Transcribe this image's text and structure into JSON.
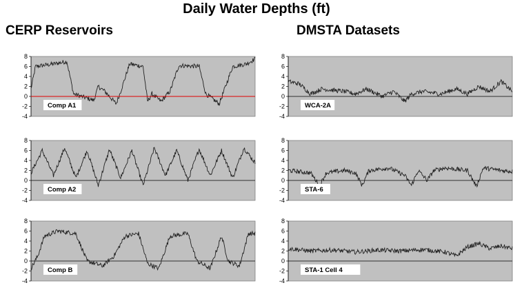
{
  "title": "Daily Water Depths (ft)",
  "column_titles": [
    "CERP Reservoirs",
    "DMSTA Datasets"
  ],
  "chart_data": [
    {
      "type": "line",
      "label": "Comp A1",
      "ylim": [
        -4,
        8
      ],
      "yticks": [
        -4,
        -2,
        0,
        2,
        4,
        6,
        8
      ],
      "reference_line": {
        "y": 0,
        "color": "#e00000"
      },
      "segments": [
        [
          0,
          1.5
        ],
        [
          0.02,
          6
        ],
        [
          0.1,
          6.5
        ],
        [
          0.16,
          7
        ],
        [
          0.19,
          0.5
        ],
        [
          0.28,
          -0.8
        ],
        [
          0.3,
          2
        ],
        [
          0.33,
          1
        ],
        [
          0.38,
          -1.5
        ],
        [
          0.4,
          1
        ],
        [
          0.44,
          6.5
        ],
        [
          0.5,
          6
        ],
        [
          0.52,
          -1
        ],
        [
          0.54,
          0.5
        ],
        [
          0.58,
          -1
        ],
        [
          0.62,
          1
        ],
        [
          0.66,
          6.2
        ],
        [
          0.75,
          6
        ],
        [
          0.78,
          0.5
        ],
        [
          0.84,
          -1.5
        ],
        [
          0.86,
          1
        ],
        [
          0.9,
          6
        ],
        [
          0.96,
          6.5
        ],
        [
          1,
          7.5
        ]
      ]
    },
    {
      "type": "line",
      "label": "Comp A2",
      "ylim": [
        -4,
        8
      ],
      "yticks": [
        -4,
        -2,
        0,
        2,
        4,
        6,
        8
      ],
      "segments": [
        [
          0,
          1.5
        ],
        [
          0.05,
          6
        ],
        [
          0.1,
          1
        ],
        [
          0.15,
          6.5
        ],
        [
          0.2,
          0.5
        ],
        [
          0.25,
          6
        ],
        [
          0.3,
          -1
        ],
        [
          0.35,
          6.2
        ],
        [
          0.4,
          0.5
        ],
        [
          0.45,
          6
        ],
        [
          0.5,
          -1
        ],
        [
          0.55,
          6.5
        ],
        [
          0.6,
          1
        ],
        [
          0.65,
          6
        ],
        [
          0.7,
          0
        ],
        [
          0.75,
          6.3
        ],
        [
          0.8,
          1
        ],
        [
          0.85,
          6
        ],
        [
          0.9,
          0.5
        ],
        [
          0.95,
          6.5
        ],
        [
          1,
          3.5
        ]
      ]
    },
    {
      "type": "line",
      "label": "Comp B",
      "ylim": [
        -4,
        8
      ],
      "yticks": [
        -4,
        -2,
        0,
        2,
        4,
        6,
        8
      ],
      "segments": [
        [
          0,
          -1.5
        ],
        [
          0.03,
          1
        ],
        [
          0.06,
          5
        ],
        [
          0.12,
          6
        ],
        [
          0.2,
          5.5
        ],
        [
          0.25,
          0
        ],
        [
          0.32,
          -1
        ],
        [
          0.37,
          1
        ],
        [
          0.42,
          5
        ],
        [
          0.48,
          5.5
        ],
        [
          0.52,
          -0.5
        ],
        [
          0.57,
          -1.5
        ],
        [
          0.62,
          5
        ],
        [
          0.7,
          5.5
        ],
        [
          0.74,
          0
        ],
        [
          0.8,
          -1.5
        ],
        [
          0.85,
          5
        ],
        [
          0.88,
          0
        ],
        [
          0.93,
          -1
        ],
        [
          0.97,
          5.5
        ],
        [
          1,
          5.5
        ]
      ]
    },
    {
      "type": "line",
      "label": "WCA-2A",
      "ylim": [
        -4,
        8
      ],
      "yticks": [
        -4,
        -2,
        0,
        2,
        4,
        6,
        8
      ],
      "segments": [
        [
          0,
          3
        ],
        [
          0.05,
          2.5
        ],
        [
          0.1,
          0.5
        ],
        [
          0.15,
          1.5
        ],
        [
          0.25,
          1
        ],
        [
          0.3,
          0.5
        ],
        [
          0.35,
          1.5
        ],
        [
          0.42,
          0
        ],
        [
          0.47,
          1
        ],
        [
          0.52,
          -1
        ],
        [
          0.55,
          0.5
        ],
        [
          0.6,
          1
        ],
        [
          0.68,
          0.5
        ],
        [
          0.75,
          1.5
        ],
        [
          0.8,
          0.5
        ],
        [
          0.85,
          2
        ],
        [
          0.9,
          1
        ],
        [
          0.95,
          3
        ],
        [
          1,
          1
        ]
      ]
    },
    {
      "type": "line",
      "label": "STA-6",
      "ylim": [
        -4,
        8
      ],
      "yticks": [
        -4,
        -2,
        0,
        2,
        4,
        6,
        8
      ],
      "segments": [
        [
          0,
          2
        ],
        [
          0.1,
          1.5
        ],
        [
          0.14,
          -1
        ],
        [
          0.17,
          1.5
        ],
        [
          0.25,
          2
        ],
        [
          0.3,
          1.5
        ],
        [
          0.33,
          -1
        ],
        [
          0.36,
          2
        ],
        [
          0.45,
          2.5
        ],
        [
          0.52,
          1
        ],
        [
          0.55,
          -1
        ],
        [
          0.58,
          2
        ],
        [
          0.62,
          0
        ],
        [
          0.65,
          2
        ],
        [
          0.7,
          2.5
        ],
        [
          0.8,
          2
        ],
        [
          0.84,
          -1.2
        ],
        [
          0.87,
          2.5
        ],
        [
          0.95,
          2
        ],
        [
          1,
          1.8
        ]
      ]
    },
    {
      "type": "line",
      "label": "STA-1 Cell 4",
      "ylim": [
        -4,
        8
      ],
      "yticks": [
        -4,
        -2,
        0,
        2,
        4,
        6,
        8
      ],
      "segments": [
        [
          0,
          2.5
        ],
        [
          0.1,
          2
        ],
        [
          0.2,
          2.2
        ],
        [
          0.3,
          1.8
        ],
        [
          0.4,
          2.2
        ],
        [
          0.5,
          2
        ],
        [
          0.6,
          2.3
        ],
        [
          0.7,
          1.8
        ],
        [
          0.75,
          1
        ],
        [
          0.8,
          2.8
        ],
        [
          0.85,
          3.5
        ],
        [
          0.9,
          2.5
        ],
        [
          0.95,
          3
        ],
        [
          1,
          2.5
        ]
      ]
    }
  ]
}
